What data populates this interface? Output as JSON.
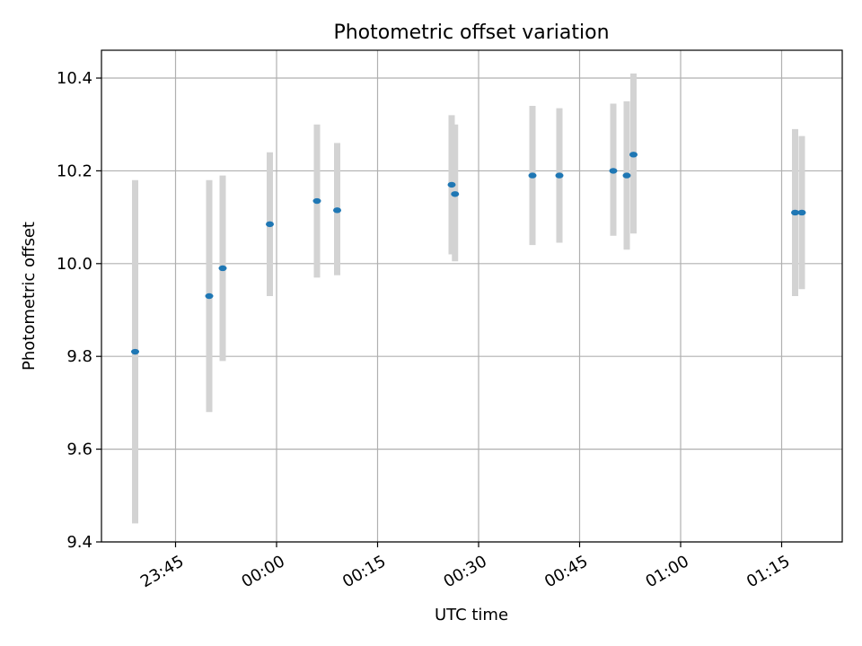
{
  "chart_data": {
    "type": "scatter",
    "title": "Photometric offset variation",
    "xlabel": "UTC time",
    "ylabel": "Photometric offset",
    "xlim": [
      "23:34",
      "01:24"
    ],
    "ylim": [
      9.4,
      10.46
    ],
    "xticks": [
      "23:45",
      "00:00",
      "00:15",
      "00:30",
      "00:45",
      "01:00",
      "01:15"
    ],
    "yticks": [
      "9.4",
      "9.6",
      "9.8",
      "10.0",
      "10.2",
      "10.4"
    ],
    "grid": true,
    "colors": {
      "marker": "#1f77b4",
      "errorbar": "#d3d3d3",
      "grid": "#b0b0b0"
    },
    "series": [
      {
        "points": [
          {
            "x": "23:39",
            "y": 9.81,
            "ylo": 9.44,
            "yhi": 10.18
          },
          {
            "x": "23:50",
            "y": 9.93,
            "ylo": 9.68,
            "yhi": 10.18
          },
          {
            "x": "23:52",
            "y": 9.99,
            "ylo": 9.79,
            "yhi": 10.19
          },
          {
            "x": "23:59",
            "y": 10.085,
            "ylo": 9.93,
            "yhi": 10.24
          },
          {
            "x": "00:06",
            "y": 10.135,
            "ylo": 9.97,
            "yhi": 10.3
          },
          {
            "x": "00:09",
            "y": 10.115,
            "ylo": 9.975,
            "yhi": 10.26
          },
          {
            "x": "00:26",
            "y": 10.17,
            "ylo": 10.02,
            "yhi": 10.32
          },
          {
            "x": "00:26:30",
            "y": 10.15,
            "ylo": 10.005,
            "yhi": 10.3
          },
          {
            "x": "00:38",
            "y": 10.19,
            "ylo": 10.04,
            "yhi": 10.34
          },
          {
            "x": "00:42",
            "y": 10.19,
            "ylo": 10.045,
            "yhi": 10.335
          },
          {
            "x": "00:50",
            "y": 10.2,
            "ylo": 10.06,
            "yhi": 10.345
          },
          {
            "x": "00:52",
            "y": 10.19,
            "ylo": 10.03,
            "yhi": 10.35
          },
          {
            "x": "00:53",
            "y": 10.235,
            "ylo": 10.065,
            "yhi": 10.41
          },
          {
            "x": "01:17",
            "y": 10.11,
            "ylo": 9.93,
            "yhi": 10.29
          },
          {
            "x": "01:18",
            "y": 10.11,
            "ylo": 9.945,
            "yhi": 10.275
          }
        ]
      }
    ]
  }
}
